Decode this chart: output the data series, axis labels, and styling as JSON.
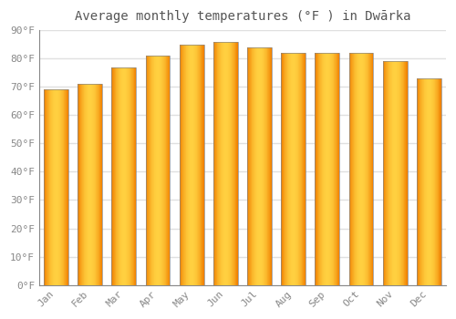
{
  "title": "Average monthly temperatures (°F ) in Dwārka",
  "months": [
    "Jan",
    "Feb",
    "Mar",
    "Apr",
    "May",
    "Jun",
    "Jul",
    "Aug",
    "Sep",
    "Oct",
    "Nov",
    "Dec"
  ],
  "values": [
    69,
    71,
    77,
    81,
    85,
    86,
    84,
    82,
    82,
    82,
    79,
    73
  ],
  "ylim": [
    0,
    90
  ],
  "yticks": [
    0,
    10,
    20,
    30,
    40,
    50,
    60,
    70,
    80,
    90
  ],
  "ytick_labels": [
    "0°F",
    "10°F",
    "20°F",
    "30°F",
    "40°F",
    "50°F",
    "60°F",
    "70°F",
    "80°F",
    "90°F"
  ],
  "background_color": "#ffffff",
  "grid_color": "#e0e0e0",
  "bar_color_center": "#FFB733",
  "bar_color_edge": "#F08000",
  "bar_outline_color": "#888888",
  "title_fontsize": 10,
  "tick_fontsize": 8,
  "bar_width": 0.72,
  "title_color": "#555555",
  "tick_color": "#888888"
}
